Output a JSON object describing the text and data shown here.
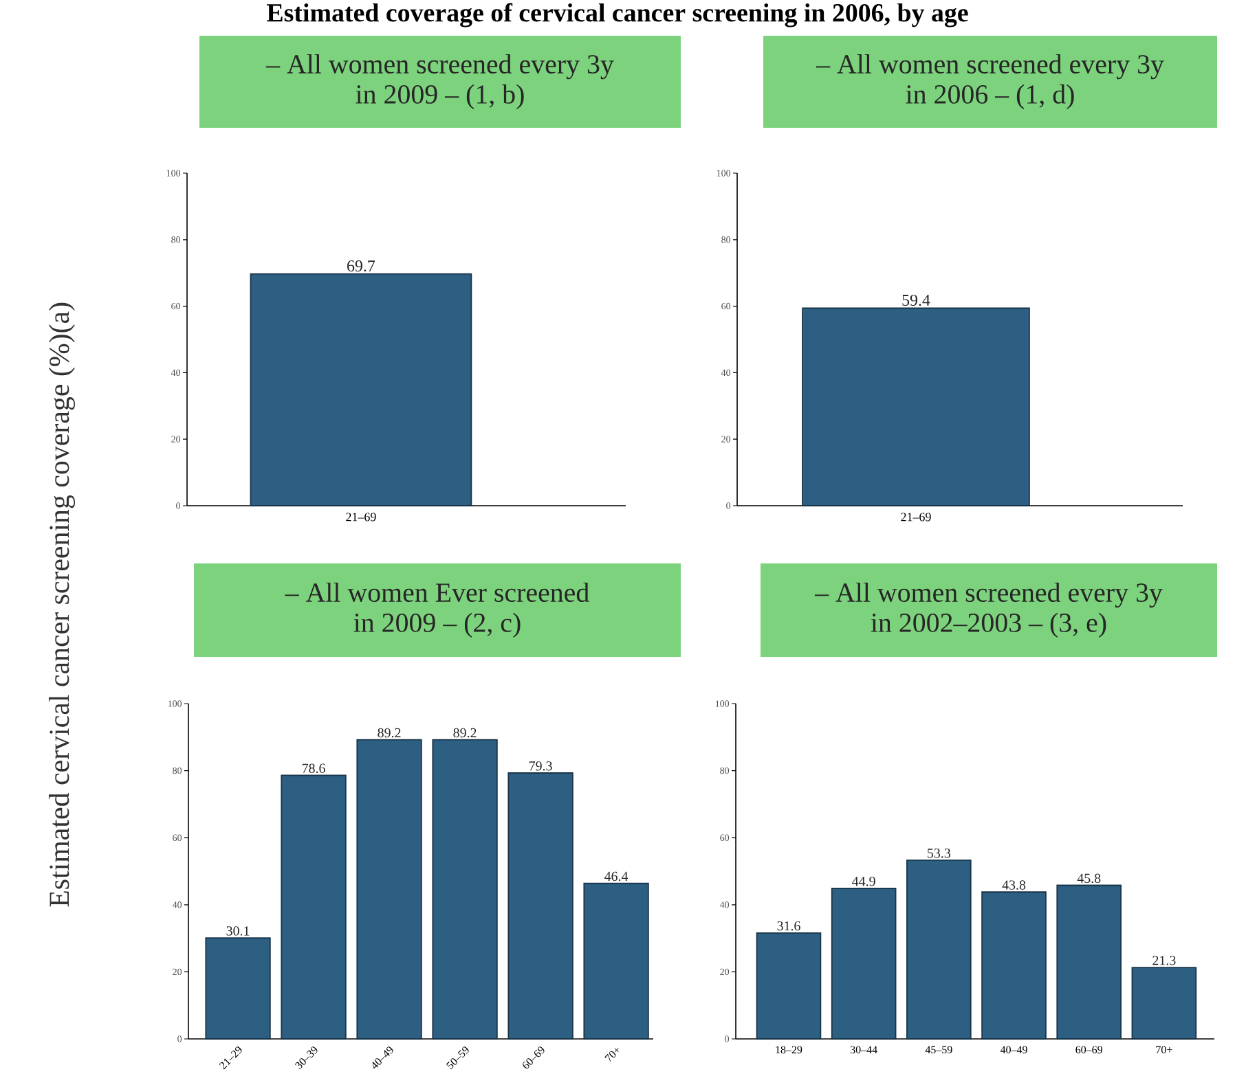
{
  "chart_data": [
    {
      "type": "bar",
      "title": "– All women screened every 3y in 2009 – (1, b)",
      "ylabel": "Estimated cervical cancer screening coverage (%)(a)",
      "annotations": [
        "Estimated coverage of cervical cancer screening in 2006, by age"
      ],
      "categories": [
        "21–69"
      ],
      "values": [
        69.7
      ],
      "color": "#2d5f82",
      "ylim": [
        0,
        100
      ],
      "yticks": [
        0,
        20,
        40,
        60,
        80,
        100
      ],
      "data_labels": true
    },
    {
      "type": "bar",
      "title": "– All women screened every 3y in 2006 – (1, d)",
      "categories": [
        "21–69"
      ],
      "values": [
        59.4
      ],
      "color": "#2d5f82",
      "ylim": [
        0,
        100
      ],
      "yticks": [
        0,
        20,
        40,
        60,
        80,
        100
      ],
      "data_labels": true
    },
    {
      "type": "bar",
      "title": "– All women Ever screened in 2009 – (2, c)",
      "categories": [
        "21–29",
        "30–39",
        "40–49",
        "50–59",
        "60–69",
        "70+"
      ],
      "values": [
        30.1,
        78.6,
        89.2,
        89.2,
        79.3,
        46.4
      ],
      "color": "#2d5f82",
      "ylim": [
        0,
        100
      ],
      "yticks": [
        0,
        20,
        40,
        60,
        80,
        100
      ],
      "data_labels": true
    },
    {
      "type": "bar",
      "title": "– All women screened every 3y in 2002–2003 – (3, e)",
      "categories": [
        "18–29",
        "30–44",
        "45–59",
        "40–49",
        "60–69",
        "70+"
      ],
      "values": [
        31.6,
        44.9,
        53.3,
        43.8,
        45.8,
        21.3
      ],
      "color": "#2d5f82",
      "ylim": [
        0,
        100
      ],
      "yticks": [
        0,
        20,
        40,
        60,
        80,
        100
      ],
      "data_labels": true
    }
  ]
}
